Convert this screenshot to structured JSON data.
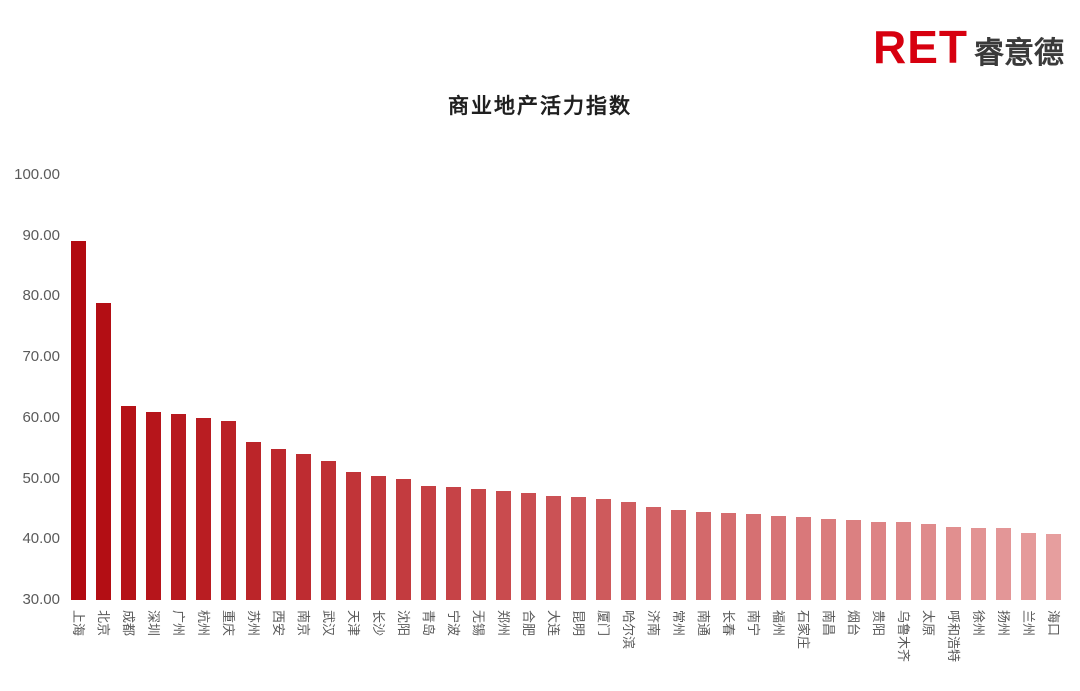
{
  "logo": {
    "ret": "RET",
    "cn": "睿意德",
    "color": "#d7000f"
  },
  "chart_data": {
    "type": "bar",
    "title": "商业地产活力指数",
    "categories": [
      "上海",
      "北京",
      "成都",
      "深圳",
      "广州",
      "杭州",
      "重庆",
      "苏州",
      "西安",
      "南京",
      "武汉",
      "天津",
      "长沙",
      "沈阳",
      "青岛",
      "宁波",
      "无锡",
      "郑州",
      "合肥",
      "大连",
      "昆明",
      "厦门",
      "哈尔滨",
      "济南",
      "常州",
      "南通",
      "长春",
      "南宁",
      "福州",
      "石家庄",
      "南昌",
      "烟台",
      "贵阳",
      "乌鲁木齐",
      "太原",
      "呼和浩特",
      "徐州",
      "扬州",
      "兰州",
      "海口"
    ],
    "values": [
      89.2,
      78.9,
      62.0,
      61.0,
      60.7,
      60.0,
      59.5,
      56.1,
      54.9,
      54.0,
      52.9,
      51.1,
      50.4,
      49.9,
      48.8,
      48.6,
      48.3,
      47.9,
      47.6,
      47.2,
      46.9,
      46.6,
      46.1,
      45.4,
      44.8,
      44.5,
      44.3,
      44.1,
      43.9,
      43.6,
      43.3,
      43.1,
      42.9,
      42.8,
      42.6,
      42.1,
      41.9,
      41.8,
      41.1,
      40.9
    ],
    "xlabel": "",
    "ylabel": "",
    "ylim": [
      30,
      100
    ],
    "yticks": [
      "100.00",
      "90.00",
      "80.00",
      "70.00",
      "60.00",
      "50.00",
      "40.00",
      "30.00"
    ],
    "grid": "off",
    "legend": "none",
    "bar_color_start": "#b20a10",
    "bar_color_end": "#e69e9e"
  }
}
